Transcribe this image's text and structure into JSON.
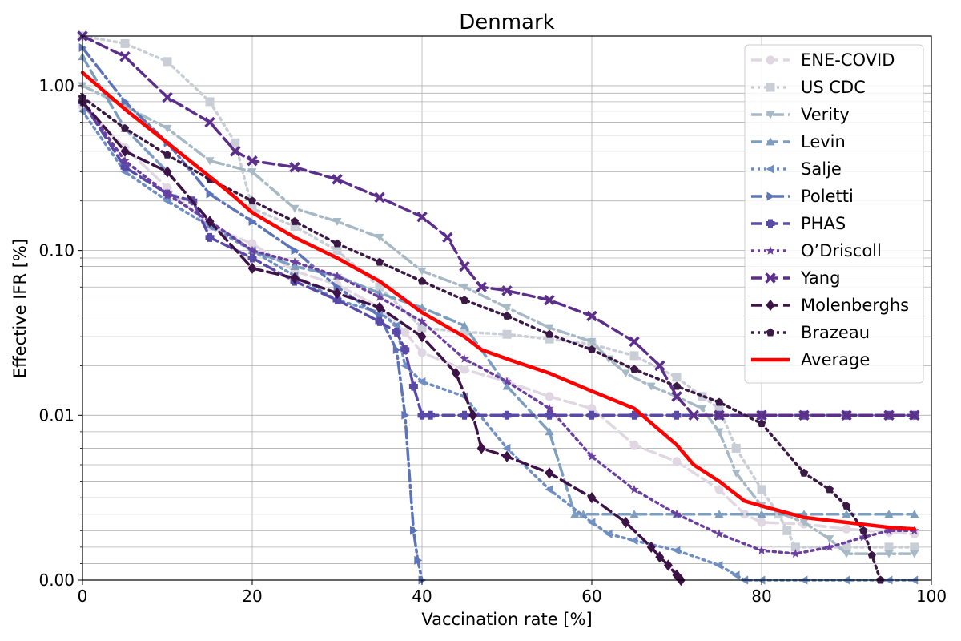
{
  "chart_data": {
    "type": "line",
    "title": "Denmark",
    "xlabel": "Vaccination rate [%]",
    "ylabel": "Effective IFR [%]",
    "xlim": [
      0,
      100
    ],
    "y_scale": "symlog",
    "y_linthresh": 0.01,
    "ylim": [
      0,
      2.0
    ],
    "x_ticks": [
      0,
      20,
      40,
      60,
      80,
      100
    ],
    "x_tick_labels": [
      "0",
      "20",
      "40",
      "60",
      "80",
      "100"
    ],
    "y_ticks": [
      0,
      0.01,
      0.1,
      1.0
    ],
    "y_tick_labels": [
      "0.00",
      "0.01",
      "0.10",
      "1.00"
    ],
    "grid": true,
    "legend_position": "top-right",
    "series": [
      {
        "name": "ENE-COVID",
        "color": "#e0d7e3",
        "dash": "dash",
        "marker": "circle",
        "x": [
          0,
          5,
          10,
          15,
          20,
          25,
          30,
          35,
          38,
          40,
          45,
          50,
          55,
          60,
          65,
          70,
          75,
          78,
          80,
          85,
          90,
          95,
          98
        ],
        "y": [
          0.75,
          0.42,
          0.24,
          0.14,
          0.11,
          0.075,
          0.062,
          0.045,
          0.032,
          0.024,
          0.019,
          0.016,
          0.013,
          0.011,
          0.0082,
          0.0072,
          0.0055,
          0.004,
          0.0035,
          0.0034,
          0.0031,
          0.0029,
          0.0028
        ]
      },
      {
        "name": "US CDC",
        "color": "#c9ced6",
        "dash": "dot",
        "marker": "square",
        "x": [
          0,
          5,
          10,
          15,
          18,
          20,
          25,
          30,
          35,
          40,
          45,
          50,
          55,
          60,
          65,
          70,
          73,
          75,
          77,
          80,
          82,
          83,
          84,
          90,
          95,
          98
        ],
        "y": [
          2.0,
          1.8,
          1.4,
          0.8,
          0.45,
          0.18,
          0.14,
          0.1,
          0.06,
          0.034,
          0.032,
          0.031,
          0.029,
          0.027,
          0.023,
          0.017,
          0.013,
          0.011,
          0.008,
          0.0055,
          0.004,
          0.003,
          0.002,
          0.002,
          0.002,
          0.002
        ]
      },
      {
        "name": "Verity",
        "color": "#a7b9c4",
        "dash": "dashdot",
        "marker": "triangle-down",
        "x": [
          0,
          5,
          10,
          15,
          20,
          25,
          30,
          35,
          40,
          45,
          50,
          55,
          60,
          62,
          64,
          67,
          70,
          73,
          75,
          77,
          80,
          85,
          88,
          90,
          95,
          98
        ],
        "y": [
          1.0,
          0.75,
          0.55,
          0.35,
          0.3,
          0.18,
          0.15,
          0.12,
          0.075,
          0.06,
          0.045,
          0.034,
          0.028,
          0.022,
          0.018,
          0.015,
          0.013,
          0.011,
          0.009,
          0.0065,
          0.0045,
          0.0035,
          0.0025,
          0.0016,
          0.0016,
          0.0016
        ]
      },
      {
        "name": "Levin",
        "color": "#7d9ebf",
        "dash": "dash",
        "marker": "triangle-up",
        "x": [
          0,
          5,
          10,
          15,
          20,
          25,
          30,
          35,
          40,
          45,
          50,
          55,
          58,
          59,
          65,
          70,
          75,
          80,
          85,
          90,
          95,
          98
        ],
        "y": [
          1.5,
          0.55,
          0.3,
          0.15,
          0.1,
          0.08,
          0.07,
          0.055,
          0.045,
          0.035,
          0.015,
          0.009,
          0.004,
          0.004,
          0.004,
          0.004,
          0.004,
          0.004,
          0.004,
          0.004,
          0.004,
          0.004
        ]
      },
      {
        "name": "Salje",
        "color": "#6f8fc2",
        "dash": "dot",
        "marker": "triangle-left",
        "x": [
          0,
          5,
          10,
          15,
          20,
          25,
          30,
          35,
          37,
          38,
          40,
          45,
          50,
          55,
          60,
          62,
          65,
          70,
          75,
          77,
          78,
          80,
          85,
          90,
          95,
          98
        ],
        "y": [
          0.7,
          0.3,
          0.2,
          0.14,
          0.1,
          0.07,
          0.05,
          0.042,
          0.035,
          0.02,
          0.016,
          0.013,
          0.008,
          0.0055,
          0.0035,
          0.0028,
          0.0024,
          0.0018,
          0.0009,
          0.0003,
          0.0,
          0.0,
          0.0,
          0.0,
          0.0,
          0.0
        ]
      },
      {
        "name": "Poletti",
        "color": "#5e74b8",
        "dash": "dashdot",
        "marker": "triangle-right",
        "x": [
          0,
          5,
          10,
          15,
          20,
          25,
          30,
          35,
          37,
          38,
          39,
          39.5,
          40
        ],
        "y": [
          1.7,
          0.8,
          0.45,
          0.22,
          0.15,
          0.1,
          0.06,
          0.04,
          0.025,
          0.01,
          0.003,
          0.0012,
          0.0
        ]
      },
      {
        "name": "PHAS",
        "color": "#5a4aa8",
        "dash": "dash",
        "marker": "plus",
        "x": [
          0,
          5,
          10,
          13,
          15,
          20,
          25,
          30,
          35,
          37,
          38,
          39,
          40,
          41,
          45,
          50,
          55,
          60,
          65,
          70,
          75,
          80,
          85,
          90,
          95,
          98
        ],
        "y": [
          0.8,
          0.32,
          0.22,
          0.2,
          0.12,
          0.09,
          0.065,
          0.05,
          0.037,
          0.032,
          0.025,
          0.015,
          0.01,
          0.01,
          0.01,
          0.01,
          0.01,
          0.01,
          0.01,
          0.01,
          0.01,
          0.01,
          0.01,
          0.01,
          0.01,
          0.01
        ]
      },
      {
        "name": "O’Driscoll",
        "color": "#6a3fa0",
        "dash": "dot",
        "marker": "star",
        "x": [
          0,
          5,
          10,
          15,
          20,
          25,
          30,
          35,
          40,
          45,
          50,
          55,
          60,
          65,
          70,
          75,
          80,
          84,
          88,
          92,
          95,
          98
        ],
        "y": [
          0.8,
          0.35,
          0.22,
          0.15,
          0.1,
          0.085,
          0.07,
          0.052,
          0.037,
          0.022,
          0.016,
          0.011,
          0.0075,
          0.0055,
          0.004,
          0.0028,
          0.0018,
          0.0016,
          0.002,
          0.0026,
          0.003,
          0.003
        ]
      },
      {
        "name": "Yang",
        "color": "#5c2f8a",
        "dash": "dash",
        "marker": "x",
        "x": [
          0,
          5,
          10,
          15,
          18,
          20,
          25,
          30,
          35,
          40,
          43,
          45,
          47,
          50,
          55,
          60,
          65,
          68,
          70,
          72,
          75,
          80,
          85,
          90,
          95,
          98
        ],
        "y": [
          2.0,
          1.5,
          0.85,
          0.6,
          0.4,
          0.35,
          0.32,
          0.27,
          0.21,
          0.16,
          0.12,
          0.08,
          0.06,
          0.057,
          0.05,
          0.04,
          0.028,
          0.02,
          0.013,
          0.01,
          0.01,
          0.01,
          0.01,
          0.01,
          0.01,
          0.01
        ]
      },
      {
        "name": "Molenberghs",
        "color": "#3d1347",
        "dash": "dash",
        "marker": "diamond",
        "x": [
          0,
          5,
          10,
          15,
          20,
          25,
          30,
          35,
          40,
          44,
          46,
          47,
          50,
          55,
          60,
          64,
          67,
          68,
          69,
          70,
          70.5
        ],
        "y": [
          0.8,
          0.4,
          0.3,
          0.15,
          0.078,
          0.068,
          0.055,
          0.045,
          0.03,
          0.018,
          0.01,
          0.008,
          0.0075,
          0.0065,
          0.005,
          0.0035,
          0.002,
          0.0014,
          0.0009,
          0.0003,
          0.0
        ]
      },
      {
        "name": "Brazeau",
        "color": "#3a1a45",
        "dash": "dot",
        "marker": "pentagon",
        "x": [
          0,
          5,
          10,
          15,
          20,
          25,
          30,
          35,
          40,
          45,
          50,
          55,
          60,
          65,
          70,
          75,
          80,
          85,
          88,
          90,
          92,
          93,
          94
        ],
        "y": [
          0.85,
          0.55,
          0.38,
          0.27,
          0.2,
          0.15,
          0.11,
          0.085,
          0.065,
          0.05,
          0.04,
          0.031,
          0.025,
          0.019,
          0.015,
          0.012,
          0.0095,
          0.0065,
          0.0055,
          0.0045,
          0.003,
          0.0015,
          0.0
        ]
      },
      {
        "name": "Average",
        "color": "#ff0000",
        "dash": "solid",
        "marker": "none",
        "x": [
          0,
          5,
          10,
          15,
          18,
          20,
          25,
          30,
          35,
          40,
          45,
          47,
          50,
          55,
          60,
          65,
          70,
          72,
          75,
          78,
          80,
          85,
          90,
          95,
          98
        ],
        "y": [
          1.2,
          0.72,
          0.45,
          0.28,
          0.21,
          0.17,
          0.12,
          0.09,
          0.065,
          0.042,
          0.03,
          0.025,
          0.022,
          0.018,
          0.014,
          0.011,
          0.0082,
          0.007,
          0.006,
          0.0048,
          0.0045,
          0.0038,
          0.0035,
          0.0032,
          0.0031
        ]
      }
    ]
  }
}
